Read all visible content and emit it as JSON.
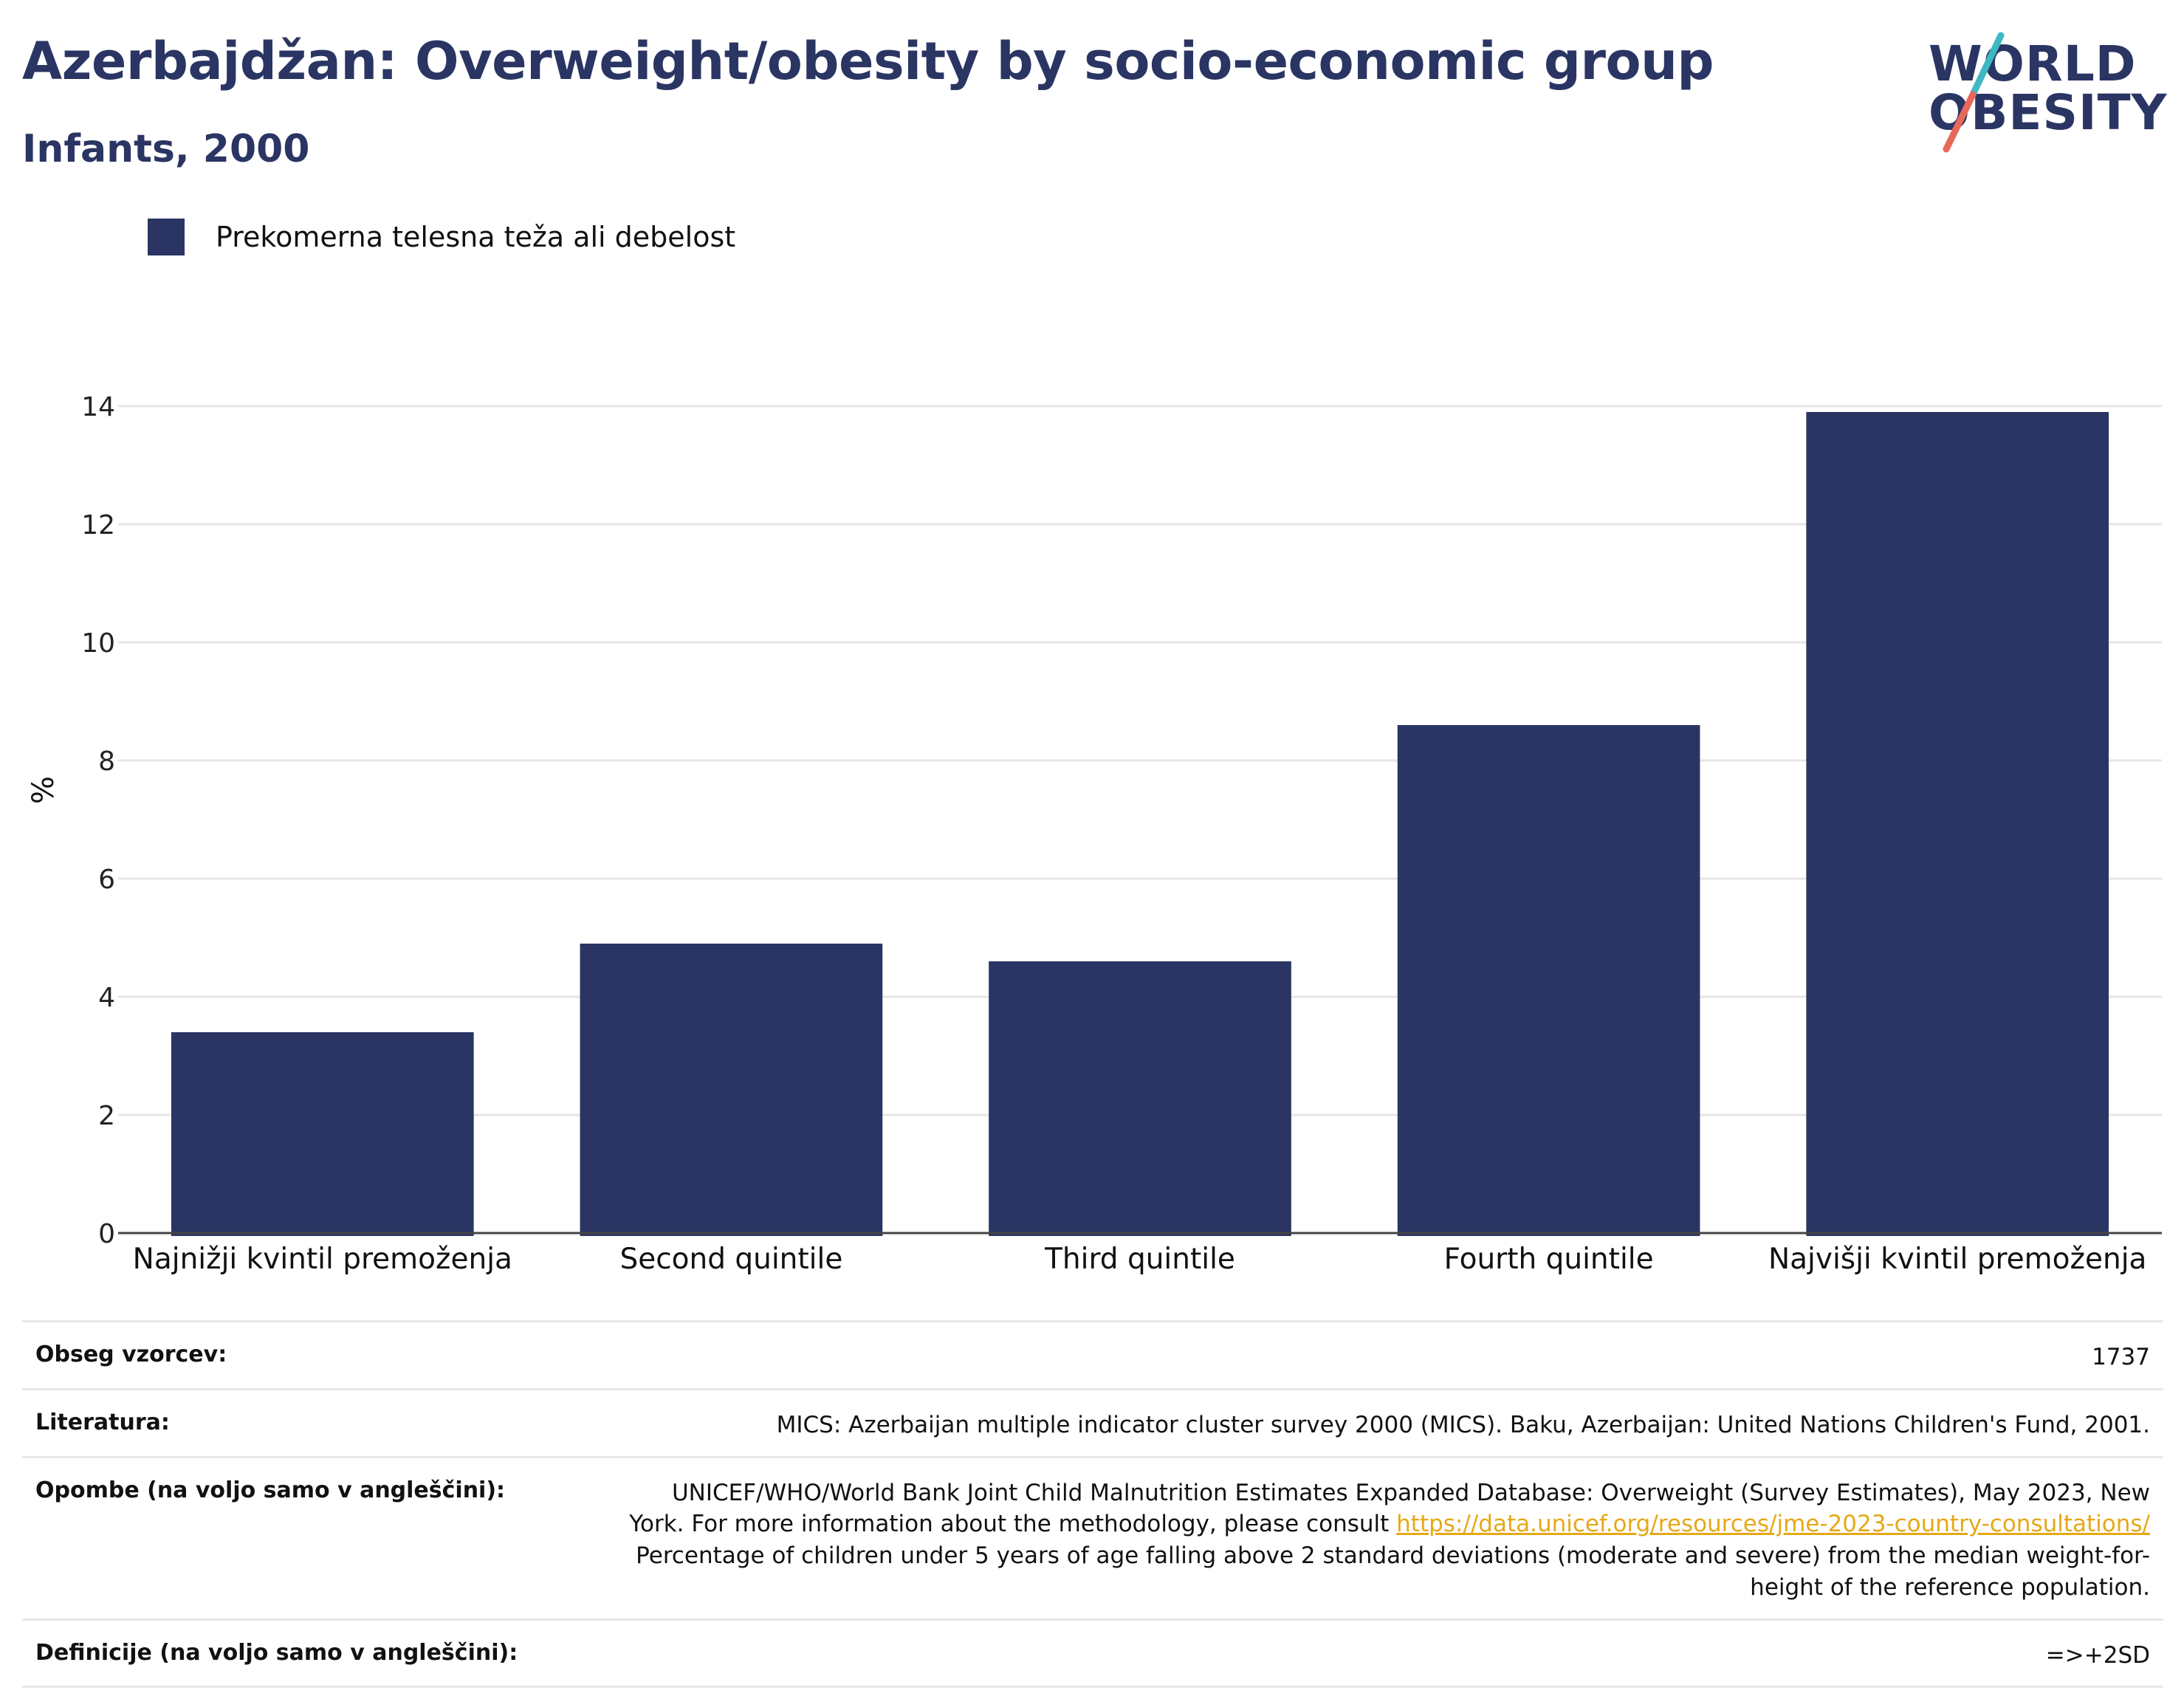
{
  "header": {
    "title": "Azerbajdžan: Overweight/obesity by socio-economic group",
    "subtitle": "Infants, 2000"
  },
  "logo": {
    "line1": "WORLD",
    "line2": "OBESITY",
    "colors": {
      "text": "#2a3563",
      "slash_top": "#3fb8c4",
      "slash_bottom": "#e8685a"
    }
  },
  "legend": {
    "label": "Prekomerna telesna teža ali debelost",
    "color": "#2a3563"
  },
  "chart_data": {
    "type": "bar",
    "title": "Azerbajdžan: Overweight/obesity by socio-economic group",
    "subtitle": "Infants, 2000",
    "categories": [
      "Najnižji kvintil premoženja",
      "Second quintile",
      "Third quintile",
      "Fourth quintile",
      "Najvišji kvintil premoženja"
    ],
    "series": [
      {
        "name": "Prekomerna telesna teža ali debelost",
        "values": [
          3.4,
          4.9,
          4.6,
          8.6,
          13.9
        ],
        "color": "#2a3563"
      }
    ],
    "xlabel": "",
    "ylabel": "%",
    "ylim": [
      0,
      14
    ],
    "yticks": [
      0,
      2,
      4,
      6,
      8,
      10,
      12,
      14
    ],
    "grid": true,
    "legend_position": "top-left"
  },
  "info": {
    "sample_size": {
      "label": "Obseg vzorcev:",
      "value": "1737"
    },
    "literature": {
      "label": "Literatura:",
      "value": "MICS: Azerbaijan multiple indicator cluster survey 2000 (MICS). Baku, Azerbaijan: United Nations Children's Fund, 2001."
    },
    "notes": {
      "label": "Opombe (na voljo samo v angleščini):",
      "line1": "UNICEF/WHO/World Bank Joint Child Malnutrition Estimates Expanded Database: Overweight (Survey Estimates), May 2023, New",
      "line2_prefix": "York. For more information about the methodology, please consult ",
      "link": "https://data.unicef.org/resources/jme-2023-country-consultations/",
      "line3": "Percentage of children under 5 years of age falling above 2 standard deviations (moderate and severe) from the median weight-for-",
      "line4": "height of the reference population."
    },
    "definitions": {
      "label": "Definicije (na voljo samo v angleščini):",
      "value": "=>+2SD"
    }
  }
}
